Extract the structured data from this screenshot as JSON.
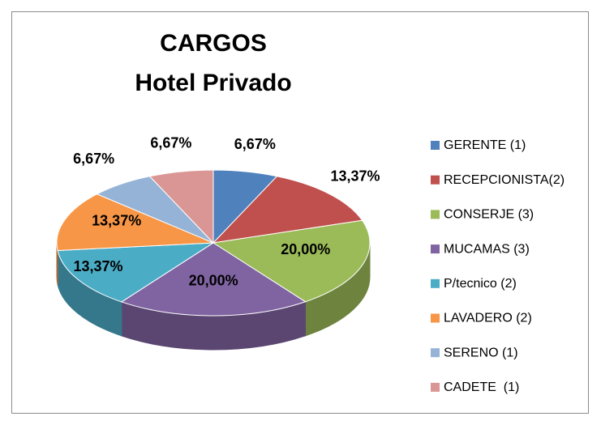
{
  "chart_data": {
    "type": "pie3d",
    "title": "CARGOS",
    "subtitle": "Hotel Privado",
    "categories": [
      "GERENTE (1)",
      "RECEPCIONISTA(2)",
      "CONSERJE (3)",
      "MUCAMAS (3)",
      "P/tecnico (2)",
      "LAVADERO (2)",
      "SERENO (1)",
      "CADETE  (1)"
    ],
    "values": [
      6.67,
      13.37,
      20,
      20,
      13.37,
      13.37,
      6.67,
      6.67
    ],
    "value_labels": [
      "6,67%",
      "13,37%",
      "20,00%",
      "20,00%",
      "13,37%",
      "13,37%",
      "6,67%",
      "6,67%"
    ],
    "colors": [
      "#4f81bd",
      "#c0504d",
      "#9bbb59",
      "#8064a2",
      "#4bacc6",
      "#f79646",
      "#95b3d7",
      "#d99694"
    ],
    "legend": "right"
  }
}
